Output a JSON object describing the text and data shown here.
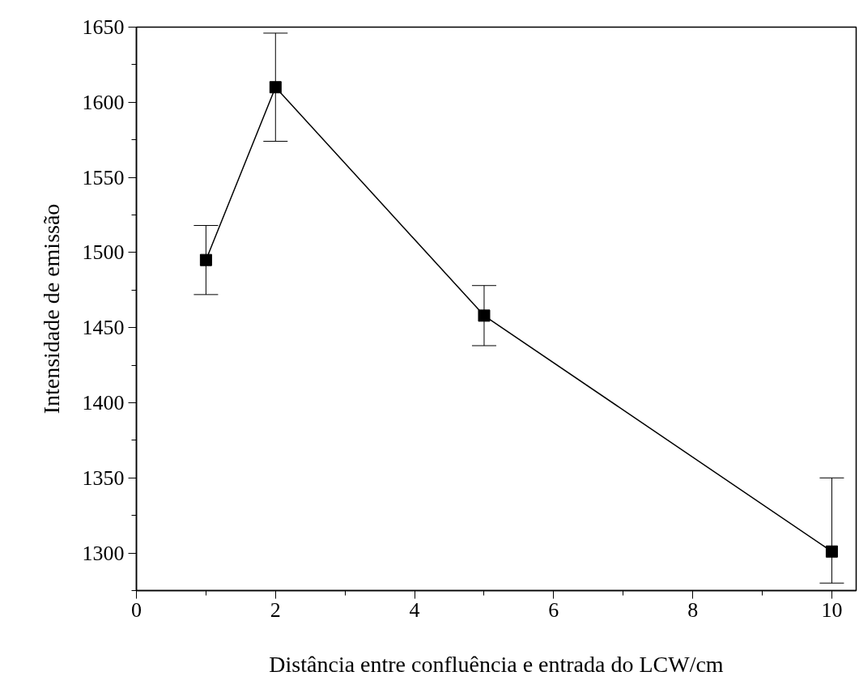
{
  "chart_data": {
    "type": "line",
    "xlabel": "Distância entre confluência e entrada do LCW/cm",
    "ylabel": "Intensidade de emissão",
    "x": [
      1,
      2,
      5,
      10
    ],
    "series": [
      {
        "color": "#000000",
        "values": [
          1495,
          1610,
          1458,
          1301
        ],
        "errors": [
          23,
          36,
          20,
          [
            1280,
            1350
          ]
        ]
      }
    ],
    "marker": "square",
    "line_style": "solid",
    "grid": false,
    "xlim": [
      0,
      10.35
    ],
    "ylim": [
      1275,
      1650
    ],
    "xticks": [
      0,
      {
        "value": 1,
        "label": null
      },
      2,
      {
        "value": 3,
        "label": null
      },
      4,
      {
        "value": 5,
        "label": null
      },
      6,
      {
        "value": 7,
        "label": null
      },
      8,
      {
        "value": 9,
        "label": null
      },
      10
    ],
    "yticks": [
      {
        "value": 1275,
        "label": null
      },
      1300,
      {
        "value": 1325,
        "label": null
      },
      1350,
      {
        "value": 1375,
        "label": null
      },
      1400,
      {
        "value": 1425,
        "label": null
      },
      1450,
      {
        "value": 1475,
        "label": null
      },
      1500,
      {
        "value": 1525,
        "label": null
      },
      1550,
      {
        "value": 1575,
        "label": null
      },
      1600,
      {
        "value": 1625,
        "label": null
      },
      1650
    ]
  }
}
